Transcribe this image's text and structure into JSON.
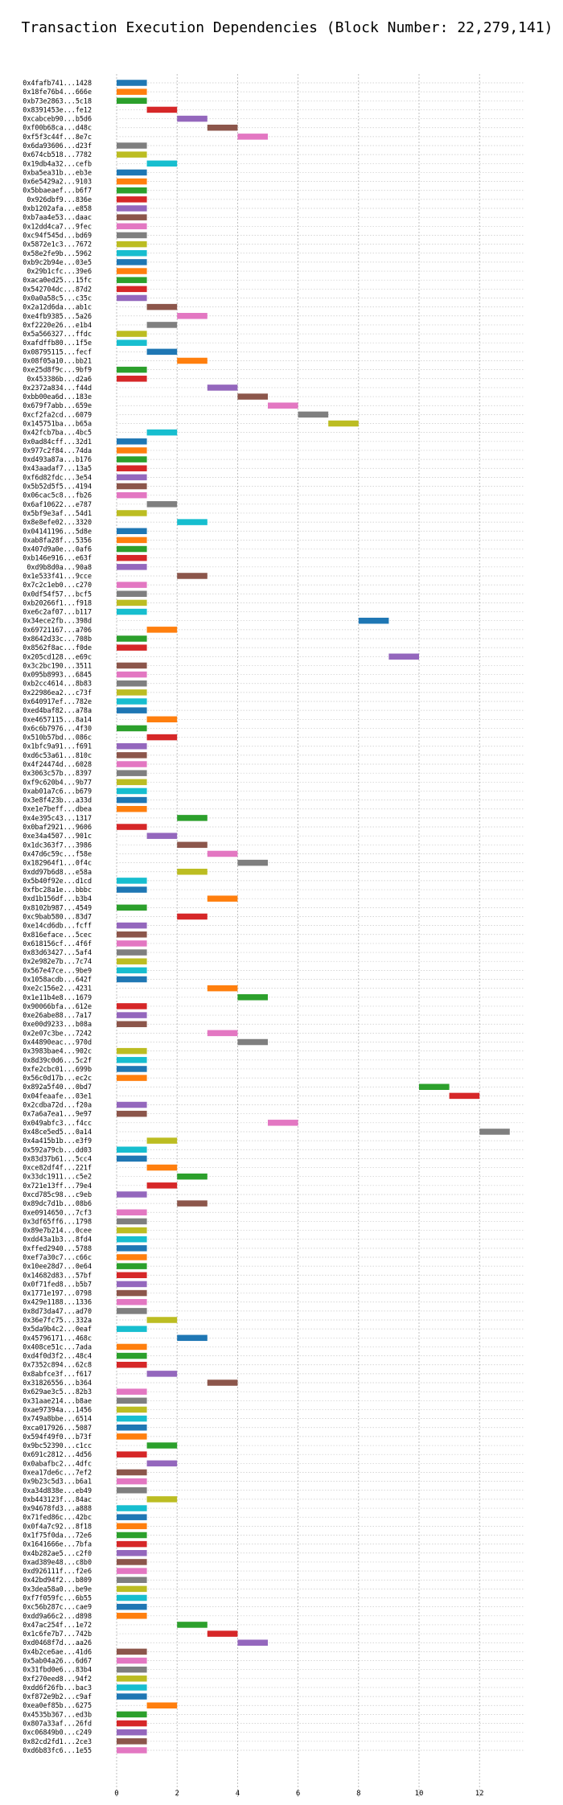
{
  "chart_data": {
    "type": "bar",
    "orientation": "horizontal",
    "title": "Transaction Execution Dependencies (Block Number: 22,279,141)",
    "xlabel": "",
    "ylabel": "",
    "xlim": [
      0,
      13.5
    ],
    "x_ticks": [
      0,
      2,
      4,
      6,
      8,
      10,
      12
    ],
    "grid": true,
    "legend": "none",
    "palette": [
      "#1f77b4",
      "#ff7f0e",
      "#2ca02c",
      "#d62728",
      "#9467bd",
      "#8c564b",
      "#e377c2",
      "#7f7f7f",
      "#bcbd22",
      "#17becf"
    ],
    "transactions": [
      {
        "hash": "0x4fafb741...1428",
        "start": 0
      },
      {
        "hash": "0x18fe76b4...666e",
        "start": 0
      },
      {
        "hash": "0xb73e2863...5c18",
        "start": 0
      },
      {
        "hash": "0x8391453e...fe12",
        "start": 1
      },
      {
        "hash": "0xcabceb90...b5d6",
        "start": 2
      },
      {
        "hash": "0xf00b68ca...d48c",
        "start": 3
      },
      {
        "hash": "0xf5f3c44f...8e7c",
        "start": 4
      },
      {
        "hash": "0x6da93606...d23f",
        "start": 0
      },
      {
        "hash": "0x674cb518...7782",
        "start": 0
      },
      {
        "hash": "0x19db4a32...cefb",
        "start": 1
      },
      {
        "hash": "0xba5ea31b...eb3e",
        "start": 0
      },
      {
        "hash": "0x6e5429a2...9103",
        "start": 0
      },
      {
        "hash": "0x5bbaeaef...b6f7",
        "start": 0
      },
      {
        "hash": "0x926dbf9...836e",
        "start": 0
      },
      {
        "hash": "0xb1202afa...e858",
        "start": 0
      },
      {
        "hash": "0xb7aa4e53...daac",
        "start": 0
      },
      {
        "hash": "0x12dd4ca7...9fec",
        "start": 0
      },
      {
        "hash": "0xc94f545d...bd69",
        "start": 0
      },
      {
        "hash": "0x5872e1c3...7672",
        "start": 0
      },
      {
        "hash": "0x58e2fe9b...5962",
        "start": 0
      },
      {
        "hash": "0xb9c2b94e...03e5",
        "start": 0
      },
      {
        "hash": "0x29b1cfc...39e6",
        "start": 0
      },
      {
        "hash": "0xaca0ed25...15fc",
        "start": 0
      },
      {
        "hash": "0x542704dc...87d2",
        "start": 0
      },
      {
        "hash": "0x0a0a58c5...c35c",
        "start": 0
      },
      {
        "hash": "0x2a12d6da...ab1c",
        "start": 1
      },
      {
        "hash": "0xe4fb9385...5a26",
        "start": 2
      },
      {
        "hash": "0xf2220e26...e1b4",
        "start": 1
      },
      {
        "hash": "0x5a566327...ffdc",
        "start": 0
      },
      {
        "hash": "0xafdffb80...1f5e",
        "start": 0
      },
      {
        "hash": "0x08795115...fecf",
        "start": 1
      },
      {
        "hash": "0x08f05a10...bb21",
        "start": 2
      },
      {
        "hash": "0xe25d8f9c...9bf9",
        "start": 0
      },
      {
        "hash": "0x453386b...d2a6",
        "start": 0
      },
      {
        "hash": "0x2372a834...f44d",
        "start": 3
      },
      {
        "hash": "0xbb00ea6d...183e",
        "start": 4
      },
      {
        "hash": "0x679f7abb...659e",
        "start": 5
      },
      {
        "hash": "0xcf2fa2cd...6079",
        "start": 6
      },
      {
        "hash": "0x145751ba...b65a",
        "start": 7
      },
      {
        "hash": "0x42fcb7ba...4bc5",
        "start": 1
      },
      {
        "hash": "0x0ad84cff...32d1",
        "start": 0
      },
      {
        "hash": "0x977c2f84...74da",
        "start": 0
      },
      {
        "hash": "0xd493a87a...b176",
        "start": 0
      },
      {
        "hash": "0x43aadaf7...13a5",
        "start": 0
      },
      {
        "hash": "0xf6d82fdc...3e54",
        "start": 0
      },
      {
        "hash": "0x5b52d5f5...4194",
        "start": 0
      },
      {
        "hash": "0x06cac5c8...fb26",
        "start": 0
      },
      {
        "hash": "0x6af10622...e787",
        "start": 1
      },
      {
        "hash": "0x5bf9e3af...54d1",
        "start": 0
      },
      {
        "hash": "0x8e8efe02...3320",
        "start": 2
      },
      {
        "hash": "0x04141196...5d8e",
        "start": 0
      },
      {
        "hash": "0xab8fa28f...5356",
        "start": 0
      },
      {
        "hash": "0x407d9a0e...0af6",
        "start": 0
      },
      {
        "hash": "0xb146e916...e63f",
        "start": 0
      },
      {
        "hash": "0xd9b8d0a...90a8",
        "start": 0
      },
      {
        "hash": "0x1e533f41...9cce",
        "start": 2
      },
      {
        "hash": "0x7c2c1eb0...c270",
        "start": 0
      },
      {
        "hash": "0x0df54f57...bcf5",
        "start": 0
      },
      {
        "hash": "0xb20266f1...f918",
        "start": 0
      },
      {
        "hash": "0xe6c2af07...b117",
        "start": 0
      },
      {
        "hash": "0x34ece2fb...398d",
        "start": 8
      },
      {
        "hash": "0x69721167...a706",
        "start": 1
      },
      {
        "hash": "0x8642d33c...708b",
        "start": 0
      },
      {
        "hash": "0x8562f8ac...f0de",
        "start": 0
      },
      {
        "hash": "0x205cd128...e69c",
        "start": 9
      },
      {
        "hash": "0x3c2bc190...3511",
        "start": 0
      },
      {
        "hash": "0x095b8993...6845",
        "start": 0
      },
      {
        "hash": "0xb2cc4614...8b83",
        "start": 0
      },
      {
        "hash": "0x22986ea2...c73f",
        "start": 0
      },
      {
        "hash": "0x640917ef...782e",
        "start": 0
      },
      {
        "hash": "0xed4baf82...a78a",
        "start": 0
      },
      {
        "hash": "0xe4657115...8a14",
        "start": 1
      },
      {
        "hash": "0x6c6b7976...4f30",
        "start": 0
      },
      {
        "hash": "0x510b57bd...086c",
        "start": 1
      },
      {
        "hash": "0x1bfc9a91...f691",
        "start": 0
      },
      {
        "hash": "0xd6c53a61...810c",
        "start": 0
      },
      {
        "hash": "0x4f24474d...6028",
        "start": 0
      },
      {
        "hash": "0x3063c57b...8397",
        "start": 0
      },
      {
        "hash": "0xf9c620b4...9b77",
        "start": 0
      },
      {
        "hash": "0xab01a7c6...b679",
        "start": 0
      },
      {
        "hash": "0x3e8f423b...a33d",
        "start": 0
      },
      {
        "hash": "0xe1e7beff...dbea",
        "start": 0
      },
      {
        "hash": "0x4e395c43...1317",
        "start": 2
      },
      {
        "hash": "0x0baf2921...9606",
        "start": 0
      },
      {
        "hash": "0xe34a4507...901c",
        "start": 1
      },
      {
        "hash": "0x1dc363f7...3986",
        "start": 2
      },
      {
        "hash": "0x47d6c59c...f58e",
        "start": 3
      },
      {
        "hash": "0x182964f1...0f4c",
        "start": 4
      },
      {
        "hash": "0xdd97b6d8...e58a",
        "start": 2
      },
      {
        "hash": "0x5b40f92e...d1cd",
        "start": 0
      },
      {
        "hash": "0xfbc28a1e...bbbc",
        "start": 0
      },
      {
        "hash": "0xd1b156df...b3b4",
        "start": 3
      },
      {
        "hash": "0x8102b987...4549",
        "start": 0
      },
      {
        "hash": "0xc9bab580...83d7",
        "start": 2
      },
      {
        "hash": "0xe14cd6db...fcff",
        "start": 0
      },
      {
        "hash": "0x816efacе...5cec",
        "start": 0
      },
      {
        "hash": "0x618156cf...4f6f",
        "start": 0
      },
      {
        "hash": "0x83d63427...5af4",
        "start": 0
      },
      {
        "hash": "0x2e982e7b...7c74",
        "start": 0
      },
      {
        "hash": "0x567e47ce...9be9",
        "start": 0
      },
      {
        "hash": "0x1058acdb...642f",
        "start": 0
      },
      {
        "hash": "0xe2c156e2...4231",
        "start": 3
      },
      {
        "hash": "0x1e11b4e8...1679",
        "start": 4
      },
      {
        "hash": "0x90066bfa...612e",
        "start": 0
      },
      {
        "hash": "0xe26abe88...7a17",
        "start": 0
      },
      {
        "hash": "0xe00d9233...b08a",
        "start": 0
      },
      {
        "hash": "0x2e07c3be...7242",
        "start": 3
      },
      {
        "hash": "0x44890eac...970d",
        "start": 4
      },
      {
        "hash": "0x3983bae4...902c",
        "start": 0
      },
      {
        "hash": "0x8d39c0d6...5c2f",
        "start": 0
      },
      {
        "hash": "0xfe2cbc01...699b",
        "start": 0
      },
      {
        "hash": "0x56c0d17b...ec2c",
        "start": 0
      },
      {
        "hash": "0x892a5f40...0bd7",
        "start": 10
      },
      {
        "hash": "0x04feaafe...03e1",
        "start": 11
      },
      {
        "hash": "0x2cdba72d...f20a",
        "start": 0
      },
      {
        "hash": "0x7a6a7ea1...9e97",
        "start": 0
      },
      {
        "hash": "0x049abfc3...f4cc",
        "start": 5
      },
      {
        "hash": "0x48ce5ed5...0a14",
        "start": 12
      },
      {
        "hash": "0x4a415b1b...e3f9",
        "start": 1
      },
      {
        "hash": "0x592a79cb...dd03",
        "start": 0
      },
      {
        "hash": "0x83d37b61...5cc4",
        "start": 0
      },
      {
        "hash": "0xce82df4f...221f",
        "start": 1
      },
      {
        "hash": "0x33dc1911...c5e2",
        "start": 2
      },
      {
        "hash": "0x721e13ff...79e4",
        "start": 1
      },
      {
        "hash": "0xcd785c98...c9eb",
        "start": 0
      },
      {
        "hash": "0x89dc7d1b...08b6",
        "start": 2
      },
      {
        "hash": "0xe0914650...7cf3",
        "start": 0
      },
      {
        "hash": "0x3df65ff6...1798",
        "start": 0
      },
      {
        "hash": "0x89e7b214...0cee",
        "start": 0
      },
      {
        "hash": "0xdd43a1b3...8fd4",
        "start": 0
      },
      {
        "hash": "0xffed2940...5788",
        "start": 0
      },
      {
        "hash": "0xef7a30c7...c66c",
        "start": 0
      },
      {
        "hash": "0x10ee28d7...0e64",
        "start": 0
      },
      {
        "hash": "0x14682d83...57bf",
        "start": 0
      },
      {
        "hash": "0x0f71fed8...b5b7",
        "start": 0
      },
      {
        "hash": "0x1771e197...0798",
        "start": 0
      },
      {
        "hash": "0x429e1188...1336",
        "start": 0
      },
      {
        "hash": "0x8d73da47...ad70",
        "start": 0
      },
      {
        "hash": "0x36e7fc75...332a",
        "start": 1
      },
      {
        "hash": "0x5da9b4c2...0eaf",
        "start": 0
      },
      {
        "hash": "0x45796171...468c",
        "start": 2
      },
      {
        "hash": "0x408ce51c...7ada",
        "start": 0
      },
      {
        "hash": "0xd4f0d3f2...48c4",
        "start": 0
      },
      {
        "hash": "0x7352c894...62c8",
        "start": 0
      },
      {
        "hash": "0x8abfce3f...f617",
        "start": 1
      },
      {
        "hash": "0x31826556...b364",
        "start": 3
      },
      {
        "hash": "0x629ae3c5...82b3",
        "start": 0
      },
      {
        "hash": "0x31aae214...b8ae",
        "start": 0
      },
      {
        "hash": "0xae97394a...1456",
        "start": 0
      },
      {
        "hash": "0x749a8bbe...6514",
        "start": 0
      },
      {
        "hash": "0xca017926...5087",
        "start": 0
      },
      {
        "hash": "0x594f49f0...b73f",
        "start": 0
      },
      {
        "hash": "0x9bc52390...c1cc",
        "start": 1
      },
      {
        "hash": "0x691c2812...4d56",
        "start": 0
      },
      {
        "hash": "0x0abafbc2...4dfc",
        "start": 1
      },
      {
        "hash": "0xea17de6c...7ef2",
        "start": 0
      },
      {
        "hash": "0x9b23c5d3...b6a1",
        "start": 0
      },
      {
        "hash": "0xa34d838e...eb49",
        "start": 0
      },
      {
        "hash": "0xb443123f...84ac",
        "start": 1
      },
      {
        "hash": "0x94678fd3...a888",
        "start": 0
      },
      {
        "hash": "0x71fed86c...42bc",
        "start": 0
      },
      {
        "hash": "0x0f4a7c92...8f18",
        "start": 0
      },
      {
        "hash": "0x1f75f0da...72e6",
        "start": 0
      },
      {
        "hash": "0x1641666e...7bfa",
        "start": 0
      },
      {
        "hash": "0x4b282ae5...c2f0",
        "start": 0
      },
      {
        "hash": "0xad389e48...c8b0",
        "start": 0
      },
      {
        "hash": "0xd926111f...f2e6",
        "start": 0
      },
      {
        "hash": "0x42bd94f2...b809",
        "start": 0
      },
      {
        "hash": "0x3dea58a0...be9e",
        "start": 0
      },
      {
        "hash": "0xf7f059fc...6b55",
        "start": 0
      },
      {
        "hash": "0xc56b287c...cae9",
        "start": 0
      },
      {
        "hash": "0xdd9a66c2...d898",
        "start": 0
      },
      {
        "hash": "0x47ac254f...1e72",
        "start": 2
      },
      {
        "hash": "0x1c6fe7b7...742b",
        "start": 3
      },
      {
        "hash": "0xd0468f7d...aa26",
        "start": 4
      },
      {
        "hash": "0x4b2ce6ae...41d6",
        "start": 0
      },
      {
        "hash": "0x5ab04a26...6d67",
        "start": 0
      },
      {
        "hash": "0x31fbd0e6...83b4",
        "start": 0
      },
      {
        "hash": "0xf270eed8...94f2",
        "start": 0
      },
      {
        "hash": "0xdd6f26fb...bac3",
        "start": 0
      },
      {
        "hash": "0xf872e9b2...c9af",
        "start": 0
      },
      {
        "hash": "0xea0ef85b...6275",
        "start": 1
      },
      {
        "hash": "0x4535b367...ed3b",
        "start": 0
      },
      {
        "hash": "0x807a33af...26fd",
        "start": 0
      },
      {
        "hash": "0xc06849b0...c249",
        "start": 0
      },
      {
        "hash": "0x82cd2fd1...2ce3",
        "start": 0
      },
      {
        "hash": "0xd6b83fc6...1e55",
        "start": 0
      }
    ]
  }
}
